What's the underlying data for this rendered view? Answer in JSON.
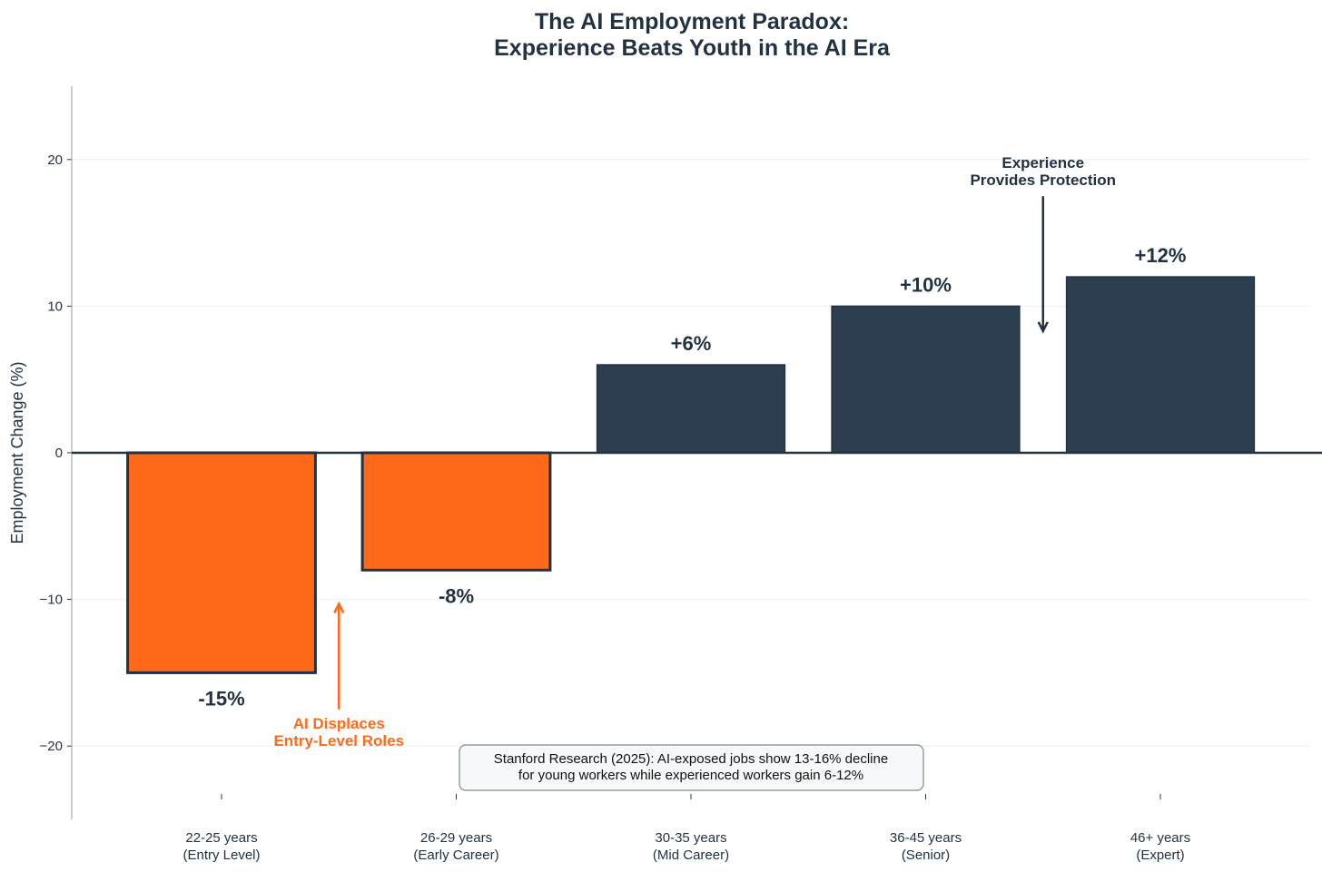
{
  "chart_data": {
    "type": "bar",
    "title": [
      "The AI Employment Paradox:",
      "Experience Beats Youth in the AI Era"
    ],
    "xlabel": "",
    "ylabel": "Employment Change (%)",
    "ylim": [
      -25,
      25
    ],
    "yticks": [
      -20,
      -10,
      0,
      10,
      20
    ],
    "ytick_labels": [
      "−20",
      "−10",
      "0",
      "10",
      "20"
    ],
    "grid": "horizontal",
    "categories": [
      [
        "22-25 years",
        "(Entry Level)"
      ],
      [
        "26-29 years",
        "(Early Career)"
      ],
      [
        "30-35 years",
        "(Mid Career)"
      ],
      [
        "36-45 years",
        "(Senior)"
      ],
      [
        "46+ years",
        "(Expert)"
      ]
    ],
    "values": [
      -15,
      -8,
      6,
      10,
      12
    ],
    "data_labels": [
      "-15%",
      "-8%",
      "+6%",
      "+10%",
      "+12%"
    ],
    "colors": {
      "negative": "#ff6a1a",
      "positive": "#2d3e50",
      "edge": "#233241",
      "grid": "#eeeeee"
    },
    "annotations": [
      {
        "text": [
          "AI Displaces",
          "Entry-Level Roles"
        ],
        "color": "#ff6a1a",
        "arrow_x": 0.5,
        "arrow_from": -17.5,
        "arrow_to": -10.3,
        "text_y": -18.5
      },
      {
        "text": [
          "Experience",
          "Provides Protection"
        ],
        "color": "#233241",
        "arrow_x": 3.5,
        "arrow_from": 17.5,
        "arrow_to": 8.3,
        "text_y": 19.5
      }
    ],
    "note": [
      "Stanford Research (2025): AI-exposed jobs show 13-16% decline",
      "for young workers while experienced workers gain 6-12%"
    ]
  }
}
